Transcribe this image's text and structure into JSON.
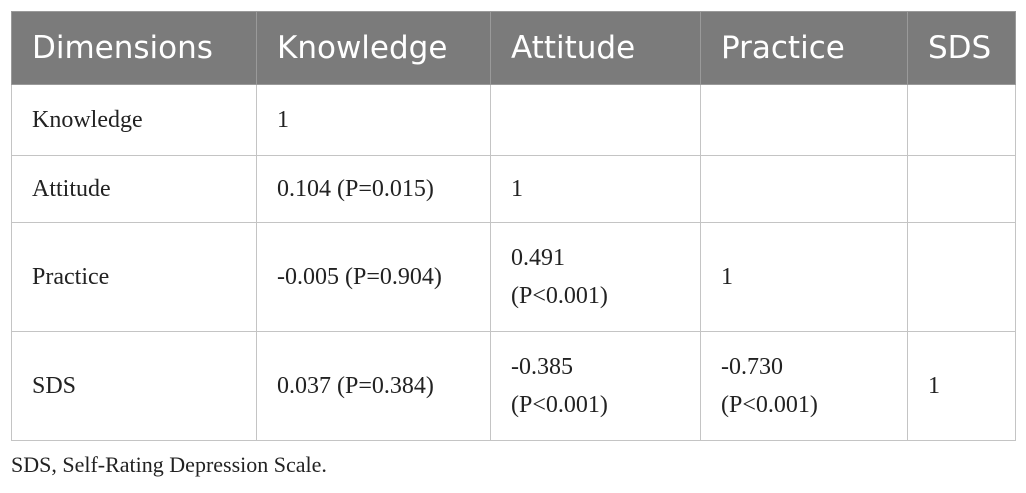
{
  "table": {
    "header": [
      "Dimensions",
      "Knowledge",
      "Attitude",
      "Practice",
      "SDS"
    ],
    "rows": [
      [
        "Knowledge",
        "1",
        null,
        null,
        null
      ],
      [
        "Attitude",
        "0.104 (P=0.015)",
        "1",
        null,
        null
      ],
      [
        "Practice",
        "-0.005 (P=0.904)",
        "0.491 (P<0.001)",
        "1",
        null
      ],
      [
        "SDS",
        "0.037 (P=0.384)",
        "-0.385 (P<0.001)",
        "-0.730 (P<0.001)",
        "1"
      ]
    ]
  },
  "footnote": "SDS, Self-Rating Depression Scale."
}
